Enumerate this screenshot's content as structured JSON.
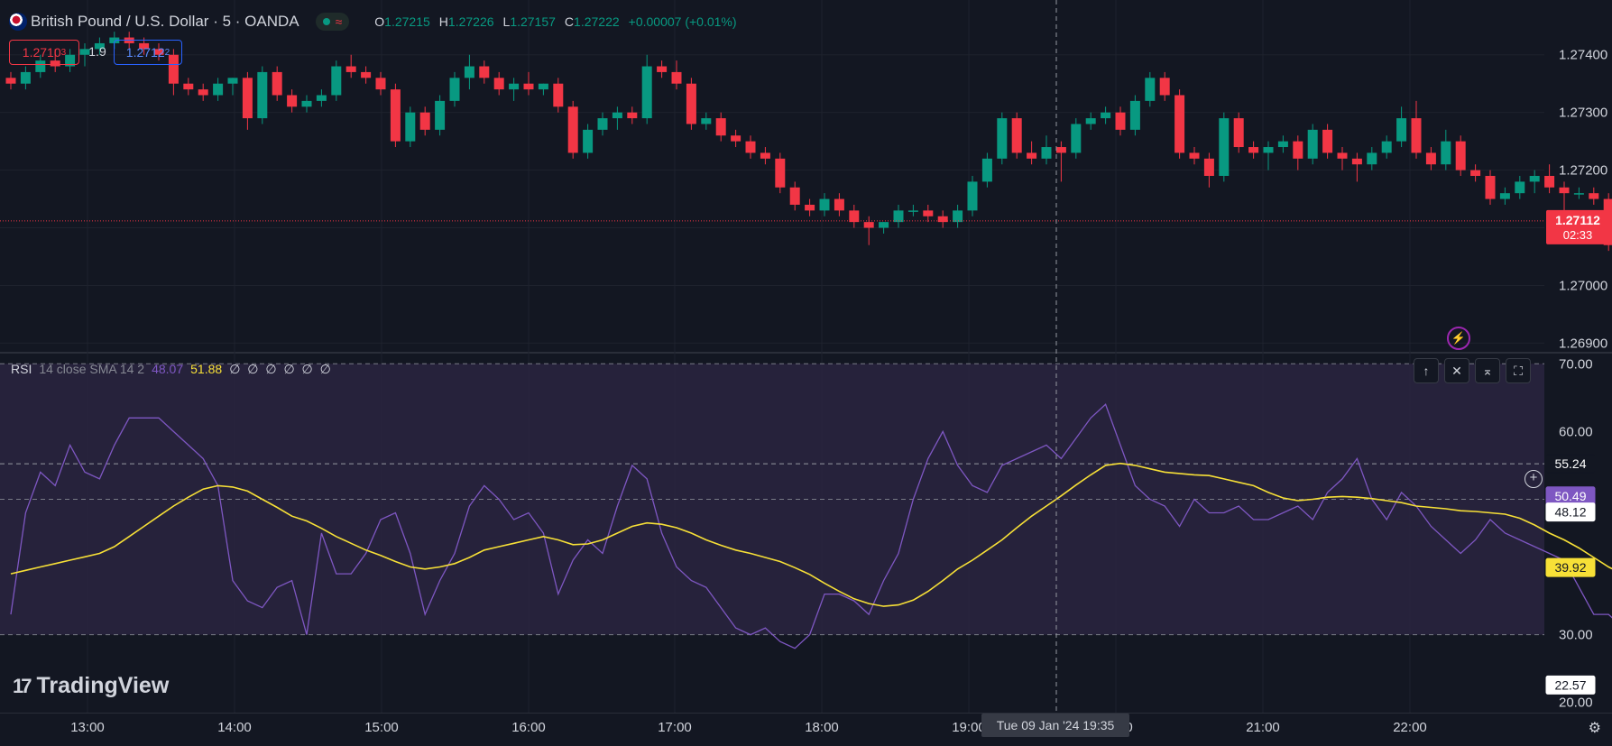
{
  "header": {
    "symbol": "British Pound / U.S. Dollar · 5 · OANDA",
    "ohlc": {
      "o_label": "O",
      "o": "1.27215",
      "h_label": "H",
      "h": "1.27226",
      "l_label": "L",
      "l": "1.27157",
      "c_label": "C",
      "c": "1.27222",
      "change": "+0.00007 (+0.01%)"
    },
    "wave_icon": "≈"
  },
  "trade": {
    "sell_main": "1.2710",
    "sell_sub": "3",
    "spread": "1.9",
    "buy_main": "1.2712",
    "buy_sub": "2"
  },
  "rsi": {
    "name": "RSI",
    "params": "14 close SMA 14 2",
    "value1": "48.07",
    "value2": "51.88",
    "zeros": "∅ ∅ ∅ ∅ ∅ ∅",
    "buttons": {
      "up": "↑",
      "close": "✕",
      "collapse": "⌅",
      "maximize": "⛶"
    }
  },
  "crosshair_time": "Tue 09 Jan '24   19:35",
  "logo_text": "TradingView",
  "logo_mark": "17",
  "icons": {
    "bolt": "⚡",
    "plus": "+",
    "settings": "⚙"
  },
  "colors": {
    "background": "#131722",
    "up": "#089981",
    "down": "#f23645",
    "rsi": "#7e57c2",
    "rsi_ma": "#f7e037",
    "band": "#2a2540",
    "grid": "#1e222d"
  },
  "chart_data": [
    {
      "type": "candlestick",
      "title": "British Pound / U.S. Dollar · 5 · OANDA",
      "x_ticks": [
        "13:00",
        "14:00",
        "15:00",
        "16:00",
        "17:00",
        "18:00",
        "19:00",
        "20:00",
        "21:00",
        "22:00"
      ],
      "y_ticks": [
        "1.27400",
        "1.27300",
        "1.27200",
        "1.27100",
        "1.27000",
        "1.26900"
      ],
      "ylim": [
        1.26885,
        1.27495
      ],
      "current_price": "1.27112",
      "countdown": "02:33",
      "candles": [
        [
          1.2736,
          1.2737,
          1.2734,
          1.2735
        ],
        [
          1.2735,
          1.2738,
          1.2734,
          1.2737
        ],
        [
          1.2737,
          1.274,
          1.2736,
          1.2739
        ],
        [
          1.2739,
          1.2741,
          1.2737,
          1.2738
        ],
        [
          1.2738,
          1.2741,
          1.2737,
          1.274
        ],
        [
          1.274,
          1.2742,
          1.2738,
          1.2741
        ],
        [
          1.2741,
          1.2743,
          1.274,
          1.2742
        ],
        [
          1.2742,
          1.2744,
          1.2741,
          1.2743
        ],
        [
          1.2743,
          1.2744,
          1.2741,
          1.2742
        ],
        [
          1.2742,
          1.2743,
          1.274,
          1.2741
        ],
        [
          1.2741,
          1.2742,
          1.2739,
          1.274
        ],
        [
          1.274,
          1.2741,
          1.2733,
          1.2735
        ],
        [
          1.2735,
          1.2736,
          1.2733,
          1.2734
        ],
        [
          1.2734,
          1.2735,
          1.2732,
          1.2733
        ],
        [
          1.2733,
          1.2736,
          1.2732,
          1.2735
        ],
        [
          1.2735,
          1.2736,
          1.2733,
          1.2736
        ],
        [
          1.2736,
          1.2737,
          1.2727,
          1.2729
        ],
        [
          1.2729,
          1.2738,
          1.2728,
          1.2737
        ],
        [
          1.2737,
          1.2738,
          1.2732,
          1.2733
        ],
        [
          1.2733,
          1.2734,
          1.273,
          1.2731
        ],
        [
          1.2731,
          1.2733,
          1.273,
          1.2732
        ],
        [
          1.2732,
          1.2734,
          1.2731,
          1.2733
        ],
        [
          1.2733,
          1.2739,
          1.2732,
          1.2738
        ],
        [
          1.2738,
          1.274,
          1.2736,
          1.2737
        ],
        [
          1.2737,
          1.2738,
          1.2735,
          1.2736
        ],
        [
          1.2736,
          1.2737,
          1.2733,
          1.2734
        ],
        [
          1.2734,
          1.2735,
          1.2724,
          1.2725
        ],
        [
          1.2725,
          1.2731,
          1.2724,
          1.273
        ],
        [
          1.273,
          1.2731,
          1.2726,
          1.2727
        ],
        [
          1.2727,
          1.2733,
          1.2726,
          1.2732
        ],
        [
          1.2732,
          1.2737,
          1.2731,
          1.2736
        ],
        [
          1.2736,
          1.274,
          1.2734,
          1.2738
        ],
        [
          1.2738,
          1.2739,
          1.2735,
          1.2736
        ],
        [
          1.2736,
          1.2737,
          1.2733,
          1.2734
        ],
        [
          1.2734,
          1.2736,
          1.2732,
          1.2735
        ],
        [
          1.2735,
          1.2737,
          1.2733,
          1.2734
        ],
        [
          1.2734,
          1.2735,
          1.2733,
          1.2735
        ],
        [
          1.2735,
          1.2736,
          1.273,
          1.2731
        ],
        [
          1.2731,
          1.2732,
          1.2722,
          1.2723
        ],
        [
          1.2723,
          1.2728,
          1.2722,
          1.2727
        ],
        [
          1.2727,
          1.273,
          1.2726,
          1.2729
        ],
        [
          1.2729,
          1.2731,
          1.2727,
          1.273
        ],
        [
          1.273,
          1.2731,
          1.2728,
          1.2729
        ],
        [
          1.2729,
          1.274,
          1.2728,
          1.2738
        ],
        [
          1.2738,
          1.2739,
          1.2736,
          1.2737
        ],
        [
          1.2737,
          1.2739,
          1.2734,
          1.2735
        ],
        [
          1.2735,
          1.2736,
          1.2727,
          1.2728
        ],
        [
          1.2728,
          1.273,
          1.2727,
          1.2729
        ],
        [
          1.2729,
          1.273,
          1.2725,
          1.2726
        ],
        [
          1.2726,
          1.2727,
          1.2724,
          1.2725
        ],
        [
          1.2725,
          1.2726,
          1.2722,
          1.2723
        ],
        [
          1.2723,
          1.2724,
          1.2721,
          1.2722
        ],
        [
          1.2722,
          1.2723,
          1.2716,
          1.2717
        ],
        [
          1.2717,
          1.2718,
          1.2713,
          1.2714
        ],
        [
          1.2714,
          1.2715,
          1.2712,
          1.2713
        ],
        [
          1.2713,
          1.2716,
          1.2712,
          1.2715
        ],
        [
          1.2715,
          1.2716,
          1.2712,
          1.2713
        ],
        [
          1.2713,
          1.2714,
          1.271,
          1.2711
        ],
        [
          1.2711,
          1.2712,
          1.2707,
          1.271
        ],
        [
          1.271,
          1.2711,
          1.2709,
          1.2711
        ],
        [
          1.2711,
          1.2714,
          1.271,
          1.2713
        ],
        [
          1.2713,
          1.2714,
          1.2712,
          1.2713
        ],
        [
          1.2713,
          1.2714,
          1.2711,
          1.2712
        ],
        [
          1.2712,
          1.2713,
          1.271,
          1.2711
        ],
        [
          1.2711,
          1.2714,
          1.271,
          1.2713
        ],
        [
          1.2713,
          1.2719,
          1.2712,
          1.2718
        ],
        [
          1.2718,
          1.2723,
          1.2717,
          1.2722
        ],
        [
          1.2722,
          1.273,
          1.2721,
          1.2729
        ],
        [
          1.2729,
          1.273,
          1.2722,
          1.2723
        ],
        [
          1.2723,
          1.2725,
          1.2721,
          1.2722
        ],
        [
          1.2722,
          1.2726,
          1.2721,
          1.2724
        ],
        [
          1.2724,
          1.2725,
          1.2718,
          1.2723
        ],
        [
          1.2723,
          1.2729,
          1.2722,
          1.2728
        ],
        [
          1.2728,
          1.273,
          1.2727,
          1.2729
        ],
        [
          1.2729,
          1.2731,
          1.2728,
          1.273
        ],
        [
          1.273,
          1.2731,
          1.2726,
          1.2727
        ],
        [
          1.2727,
          1.2733,
          1.2726,
          1.2732
        ],
        [
          1.2732,
          1.2737,
          1.2731,
          1.2736
        ],
        [
          1.2736,
          1.2737,
          1.2732,
          1.2733
        ],
        [
          1.2733,
          1.2734,
          1.2722,
          1.2723
        ],
        [
          1.2723,
          1.2724,
          1.2721,
          1.2722
        ],
        [
          1.2722,
          1.2723,
          1.2717,
          1.2719
        ],
        [
          1.2719,
          1.273,
          1.2718,
          1.2729
        ],
        [
          1.2729,
          1.273,
          1.2723,
          1.2724
        ],
        [
          1.2724,
          1.2725,
          1.2722,
          1.2723
        ],
        [
          1.2723,
          1.2725,
          1.272,
          1.2724
        ],
        [
          1.2724,
          1.2726,
          1.2723,
          1.2725
        ],
        [
          1.2725,
          1.2726,
          1.272,
          1.2722
        ],
        [
          1.2722,
          1.2728,
          1.2721,
          1.2727
        ],
        [
          1.2727,
          1.2728,
          1.2722,
          1.2723
        ],
        [
          1.2723,
          1.2724,
          1.272,
          1.2722
        ],
        [
          1.2722,
          1.2723,
          1.2718,
          1.2721
        ],
        [
          1.2721,
          1.2724,
          1.272,
          1.2723
        ],
        [
          1.2723,
          1.2726,
          1.2722,
          1.2725
        ],
        [
          1.2725,
          1.2731,
          1.2724,
          1.2729
        ],
        [
          1.2729,
          1.2732,
          1.2722,
          1.2723
        ],
        [
          1.2723,
          1.2724,
          1.272,
          1.2721
        ],
        [
          1.2721,
          1.2727,
          1.272,
          1.2725
        ],
        [
          1.2725,
          1.2726,
          1.2719,
          1.272
        ],
        [
          1.272,
          1.2721,
          1.2718,
          1.2719
        ],
        [
          1.2719,
          1.272,
          1.2714,
          1.2715
        ],
        [
          1.2715,
          1.2717,
          1.2714,
          1.2716
        ],
        [
          1.2716,
          1.2719,
          1.2715,
          1.2718
        ],
        [
          1.2718,
          1.272,
          1.2716,
          1.2719
        ],
        [
          1.2719,
          1.2721,
          1.2716,
          1.2717
        ],
        [
          1.2717,
          1.2718,
          1.2712,
          1.2716
        ],
        [
          1.2716,
          1.2717,
          1.2715,
          1.2716
        ],
        [
          1.2716,
          1.2717,
          1.2714,
          1.2715
        ],
        [
          1.2715,
          1.2716,
          1.2706,
          1.2707
        ],
        [
          1.2707,
          1.2708,
          1.2702,
          1.2703
        ],
        [
          1.2703,
          1.2705,
          1.2702,
          1.2704
        ],
        [
          1.2704,
          1.2706,
          1.2702,
          1.2703
        ],
        [
          1.2703,
          1.2704,
          1.2699,
          1.2701
        ],
        [
          1.2701,
          1.2702,
          1.2689,
          1.269
        ],
        [
          1.269,
          1.2696,
          1.2689,
          1.2695
        ],
        [
          1.2695,
          1.2702,
          1.2694,
          1.27
        ],
        [
          1.27,
          1.2709,
          1.2699,
          1.2708
        ],
        [
          1.2708,
          1.271,
          1.2706,
          1.2709
        ],
        [
          1.2709,
          1.2713,
          1.2708,
          1.2712
        ],
        [
          1.2712,
          1.2716,
          1.2711,
          1.2714
        ],
        [
          1.2714,
          1.2716,
          1.2704,
          1.2705
        ],
        [
          1.2705,
          1.2713,
          1.2704,
          1.2712
        ],
        [
          1.2712,
          1.2716,
          1.271,
          1.2711
        ]
      ]
    },
    {
      "type": "line",
      "title": "RSI 14 close SMA 14 2",
      "y_ticks": [
        "70.00",
        "60.00",
        "30.00",
        "20.00"
      ],
      "ylim": [
        18.5,
        71.5
      ],
      "band": [
        30,
        70
      ],
      "middle_line": 50,
      "value_labels": [
        "55.24",
        "50.49",
        "48.12",
        "39.92",
        "22.57"
      ],
      "series": [
        {
          "name": "RSI",
          "values": [
            33,
            48,
            54,
            52,
            58,
            54,
            53,
            58,
            62,
            62,
            62,
            60,
            58,
            56,
            52,
            38,
            35,
            34,
            37,
            38,
            30,
            45,
            39,
            39,
            42,
            47,
            48,
            42,
            33,
            38,
            42,
            49,
            52,
            50,
            47,
            48,
            45,
            36,
            41,
            44,
            42,
            49,
            55,
            53,
            45,
            40,
            38,
            37,
            34,
            31,
            30,
            31,
            29,
            28,
            30,
            36,
            36,
            35,
            33,
            38,
            42,
            50,
            56,
            60,
            55,
            52,
            51,
            55,
            56,
            57,
            58,
            56,
            59,
            62,
            64,
            58,
            52,
            50,
            49,
            46,
            50,
            48,
            48,
            49,
            47,
            47,
            48,
            49,
            47,
            51,
            53,
            56,
            50,
            47,
            51,
            49,
            46,
            44,
            42,
            44,
            47,
            45,
            44,
            43,
            42,
            41,
            37,
            33,
            33,
            31,
            22,
            28,
            36,
            42,
            46,
            46,
            48,
            52,
            47,
            51,
            50.5
          ]
        },
        {
          "name": "SMA",
          "values": [
            39,
            39.5,
            40,
            40.5,
            41,
            41.5,
            42,
            43,
            44.5,
            46,
            47.5,
            49,
            50.3,
            51.5,
            52,
            51.8,
            51.2,
            50,
            48.8,
            47.5,
            46.8,
            45.7,
            44.5,
            43.5,
            42.5,
            41.7,
            40.8,
            40,
            39.7,
            40,
            40.5,
            41.4,
            42.5,
            43,
            43.5,
            44,
            44.5,
            44,
            43.3,
            43.4,
            44,
            45,
            46,
            46.5,
            46.3,
            45.8,
            45,
            44,
            43.2,
            42.5,
            42,
            41.4,
            40.8,
            39.9,
            38.9,
            37.6,
            36.4,
            35.3,
            34.6,
            34.2,
            34.4,
            35.1,
            36.4,
            38,
            39.7,
            41,
            42.5,
            44,
            45.8,
            47.5,
            49,
            50.5,
            52.1,
            53.6,
            55,
            55.3,
            55,
            54.5,
            54,
            53.8,
            53.6,
            53.5,
            53,
            52.5,
            52,
            51,
            50.2,
            49.8,
            50,
            50.3,
            50.4,
            50.3,
            50.1,
            49.8,
            49.5,
            49,
            48.8,
            48.6,
            48.3,
            48.2,
            48,
            47.8,
            47.2,
            46.2,
            45,
            44,
            42.8,
            41.4,
            40,
            38.9,
            38.5,
            38.5,
            38.6,
            38.5,
            38.7,
            39.1,
            39.3,
            39.5,
            40.2,
            41
          ]
        }
      ]
    }
  ]
}
